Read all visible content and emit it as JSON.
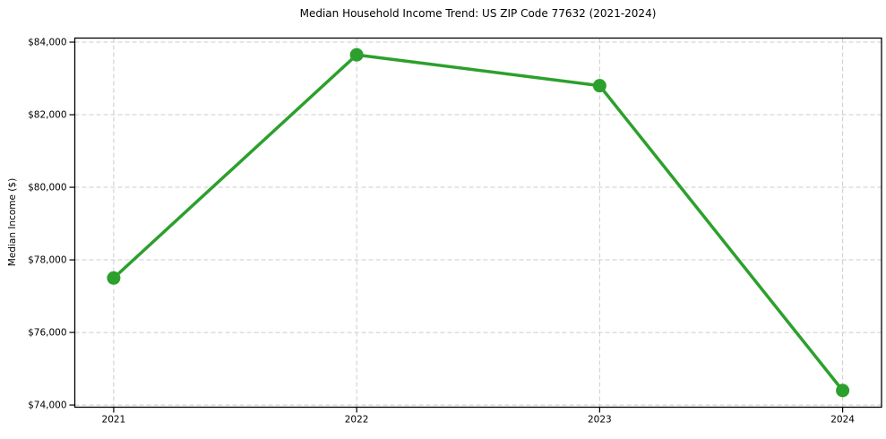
{
  "figure": {
    "title": "Median Household Income Trend: US ZIP Code 77632 (2021-2024)",
    "background_color": "#ffffff"
  },
  "chart_data": {
    "type": "line",
    "title": "Median Household Income Trend: US ZIP Code 77632 (2021-2024)",
    "xlabel": "",
    "ylabel": "Median Income ($)",
    "x": [
      2021,
      2022,
      2023,
      2024
    ],
    "series": [
      {
        "values": [
          77500,
          83650,
          82800,
          74400
        ],
        "color": "#2ca02c",
        "marker": "circle",
        "marker_radius": 7.5,
        "line_width": 3.5
      }
    ],
    "xticks": {
      "values": [
        2021,
        2022,
        2023,
        2024
      ],
      "labels": [
        "2021",
        "2022",
        "2023",
        "2024"
      ]
    },
    "yticks": {
      "values": [
        74000,
        76000,
        78000,
        80000,
        82000,
        84000
      ],
      "labels": [
        "$74,000",
        "$76,000",
        "$78,000",
        "$80,000",
        "$82,000",
        "$84,000"
      ]
    },
    "xlim": [
      2020.84,
      2024.16
    ],
    "ylim": [
      73940,
      84112
    ],
    "grid": {
      "show": true,
      "style": "dashed",
      "color": "#cccccc"
    },
    "legend": "none",
    "spine_color": "#000000",
    "tick_color": "#000000",
    "text_color": "#000000"
  }
}
